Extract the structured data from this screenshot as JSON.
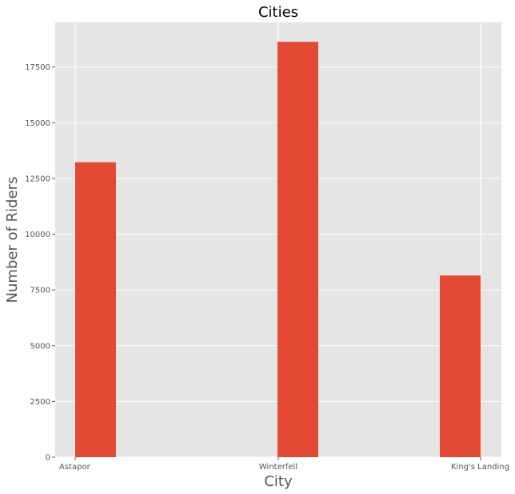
{
  "chart_data": {
    "type": "bar",
    "title": "Cities",
    "xlabel": "City",
    "ylabel": "Number of Riders",
    "categories": [
      "Astapor",
      "Winterfell",
      "King's Landing"
    ],
    "values": [
      13230,
      18630,
      8150
    ],
    "ylim": [
      0,
      19500
    ],
    "yticks": [
      0,
      2500,
      5000,
      7500,
      10000,
      12500,
      15000,
      17500
    ],
    "ytick_labels": [
      "0",
      "2500",
      "5000",
      "7500",
      "10000",
      "12500",
      "15000",
      "17500"
    ],
    "grid": true,
    "style": "ggplot",
    "colors": {
      "bar": "#e24a33",
      "background": "#e5e5e5",
      "grid": "#ffffff",
      "text": "#555555"
    }
  }
}
